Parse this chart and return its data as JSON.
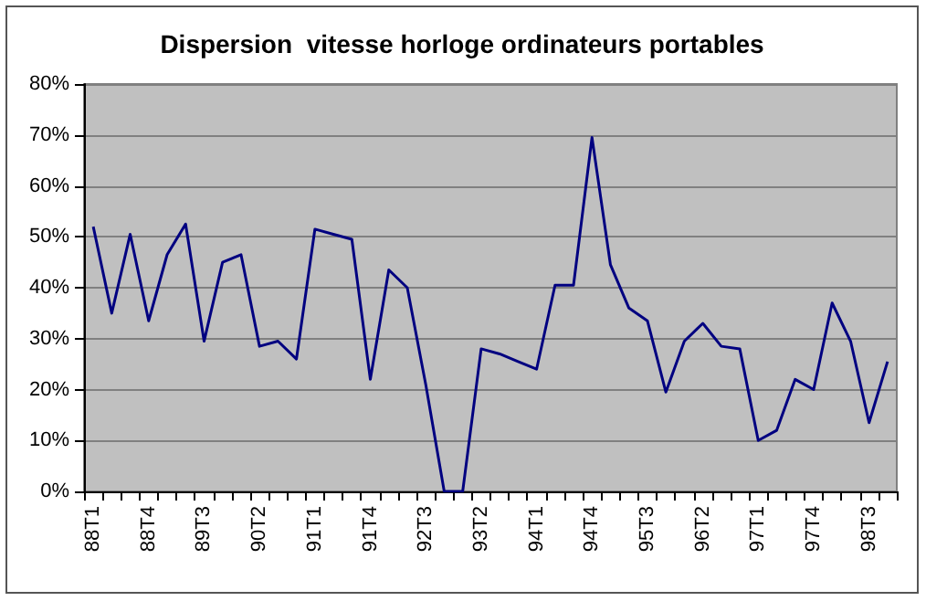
{
  "chart_data": {
    "type": "line",
    "title": "Dispersion  vitesse horloge ordinateurs portables",
    "categories": [
      "88T1",
      null,
      null,
      "88T4",
      null,
      null,
      "89T3",
      null,
      null,
      "90T2",
      null,
      null,
      "91T1",
      null,
      null,
      "91T4",
      null,
      null,
      "92T3",
      null,
      null,
      "93T2",
      null,
      null,
      "94T1",
      null,
      null,
      "94T4",
      null,
      null,
      "95T3",
      null,
      null,
      "96T2",
      null,
      null,
      "97T1",
      null,
      null,
      "97T4",
      null,
      null,
      "98T3",
      null
    ],
    "series": [
      {
        "color": "#000080",
        "values": [
          52,
          35,
          50.5,
          33.5,
          46.5,
          52.5,
          29.5,
          45,
          46.5,
          28.5,
          29.5,
          26,
          51.5,
          50.5,
          49.5,
          22,
          43.5,
          40,
          21,
          0,
          0,
          28,
          27,
          25.5,
          24,
          40.5,
          40.5,
          69.5,
          44.5,
          36,
          33.5,
          19.5,
          29.5,
          33,
          28.5,
          28,
          10,
          12,
          22,
          20,
          37,
          29.5,
          13.5,
          25.5
        ]
      }
    ],
    "ylim": [
      0,
      80
    ],
    "yticks": [
      {
        "value": 0,
        "label": "0%"
      },
      {
        "value": 10,
        "label": "10%"
      },
      {
        "value": 20,
        "label": "20%"
      },
      {
        "value": 30,
        "label": "30%"
      },
      {
        "value": 40,
        "label": "40%"
      },
      {
        "value": 50,
        "label": "50%"
      },
      {
        "value": 60,
        "label": "60%"
      },
      {
        "value": 70,
        "label": "70%"
      },
      {
        "value": 80,
        "label": "80%"
      }
    ],
    "grid": "y",
    "marker": "none",
    "line_style": "solid"
  }
}
